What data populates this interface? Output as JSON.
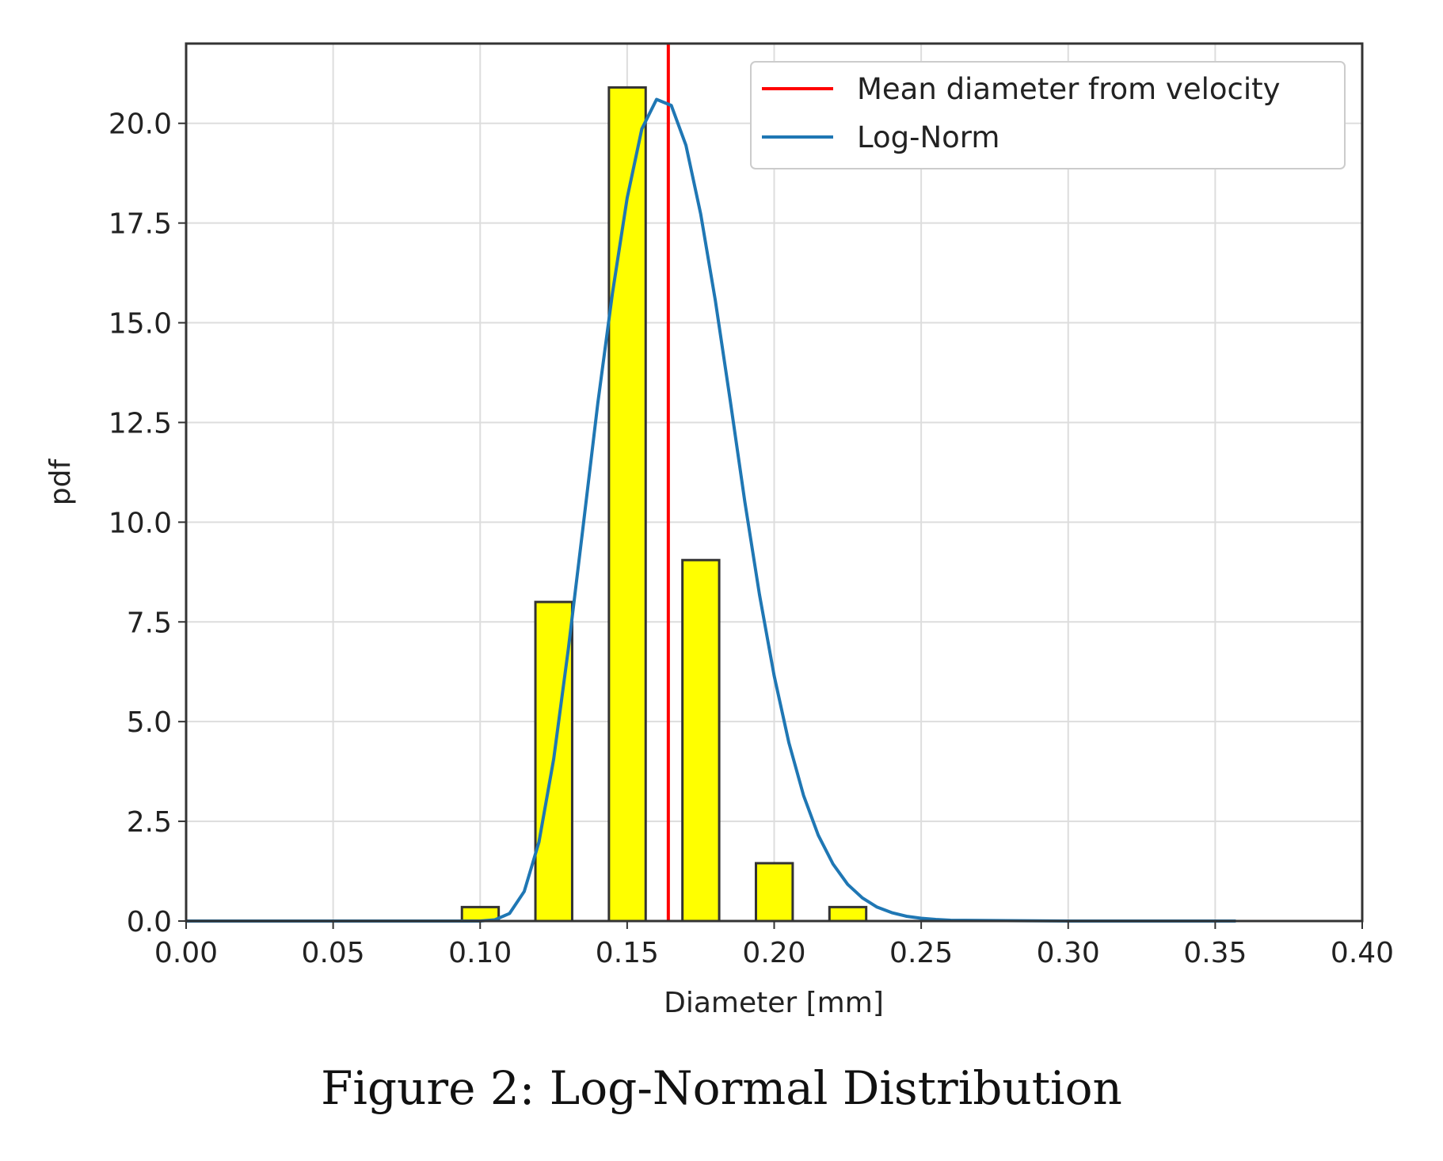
{
  "caption": "Figure 2: Log-Normal Distribution",
  "chart_data": {
    "type": "bar",
    "xlabel": "Diameter [mm]",
    "ylabel": "pdf",
    "xlim": [
      0.0,
      0.4
    ],
    "ylim": [
      0.0,
      22.0
    ],
    "grid": true,
    "legend_position": "top-right",
    "xticks": [
      "0.00",
      "0.05",
      "0.10",
      "0.15",
      "0.20",
      "0.25",
      "0.30",
      "0.35",
      "0.40"
    ],
    "yticks": [
      "0.0",
      "2.5",
      "5.0",
      "7.5",
      "10.0",
      "12.5",
      "15.0",
      "17.5",
      "20.0"
    ],
    "histogram": {
      "color": "#ffff00",
      "edgecolor": "#333333",
      "bin_width": 0.0125,
      "bin_starts": [
        0.0938,
        0.1188,
        0.1438,
        0.1688,
        0.1938,
        0.2188
      ],
      "values": [
        0.35,
        8.0,
        20.9,
        9.05,
        1.45,
        0.35
      ]
    },
    "series": [
      {
        "name": "Mean diameter from velocity",
        "type": "vline",
        "x": 0.164,
        "color": "#ff0000"
      },
      {
        "name": "Log-Norm",
        "type": "line",
        "color": "#1f77b4",
        "x": [
          0.0,
          0.1,
          0.105,
          0.11,
          0.115,
          0.12,
          0.125,
          0.13,
          0.135,
          0.14,
          0.145,
          0.15,
          0.155,
          0.16,
          0.165,
          0.17,
          0.175,
          0.18,
          0.185,
          0.19,
          0.195,
          0.2,
          0.205,
          0.21,
          0.215,
          0.22,
          0.225,
          0.23,
          0.235,
          0.24,
          0.245,
          0.25,
          0.255,
          0.26,
          0.3,
          0.357
        ],
        "y": [
          0.0,
          0.0,
          0.03,
          0.19,
          0.74,
          1.98,
          4.06,
          6.82,
          9.88,
          12.98,
          15.74,
          18.13,
          19.86,
          20.6,
          20.45,
          19.45,
          17.73,
          15.56,
          13.08,
          10.52,
          8.19,
          6.15,
          4.47,
          3.15,
          2.15,
          1.43,
          0.92,
          0.58,
          0.35,
          0.21,
          0.12,
          0.07,
          0.04,
          0.02,
          0.0,
          0.0
        ]
      }
    ]
  }
}
